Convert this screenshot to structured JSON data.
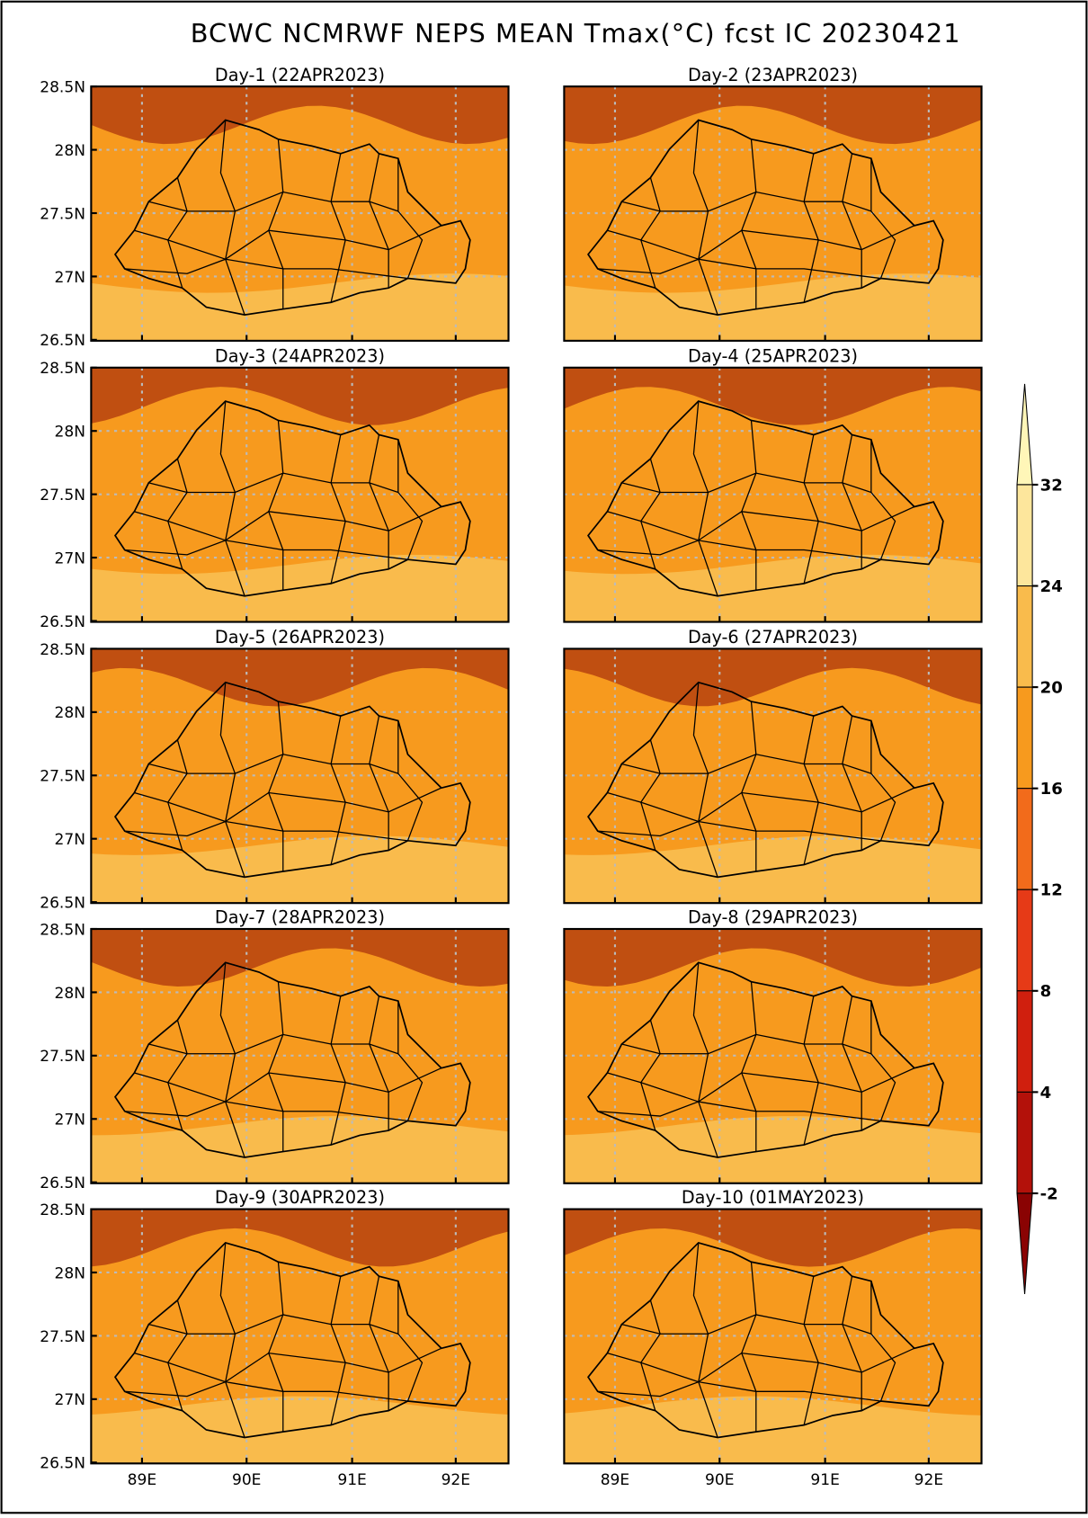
{
  "title": "BCWC NCMRWF NEPS MEAN Tmax(°C) fcst IC 20230421",
  "panels": [
    {
      "title": "Day-1 (22APR2023)"
    },
    {
      "title": "Day-2 (23APR2023)"
    },
    {
      "title": "Day-3 (24APR2023)"
    },
    {
      "title": "Day-4 (25APR2023)"
    },
    {
      "title": "Day-5 (26APR2023)"
    },
    {
      "title": "Day-6 (27APR2023)"
    },
    {
      "title": "Day-7 (28APR2023)"
    },
    {
      "title": "Day-8 (29APR2023)"
    },
    {
      "title": "Day-9 (30APR2023)"
    },
    {
      "title": "Day-10 (01MAY2023)"
    }
  ],
  "lat_labels": [
    "28.5N",
    "28N",
    "27.5N",
    "27N",
    "26.5N"
  ],
  "lon_labels": [
    "89E",
    "90E",
    "91E",
    "92E"
  ],
  "colorbar": {
    "levels": [
      32,
      24,
      20,
      16,
      12,
      8,
      4,
      -2
    ],
    "colors": [
      "#fff6b8",
      "#fde69c",
      "#f9bb4c",
      "#f79a1e",
      "#f26b1b",
      "#e63a17",
      "#d01f0e",
      "#b3110a",
      "#8a0303"
    ]
  }
}
